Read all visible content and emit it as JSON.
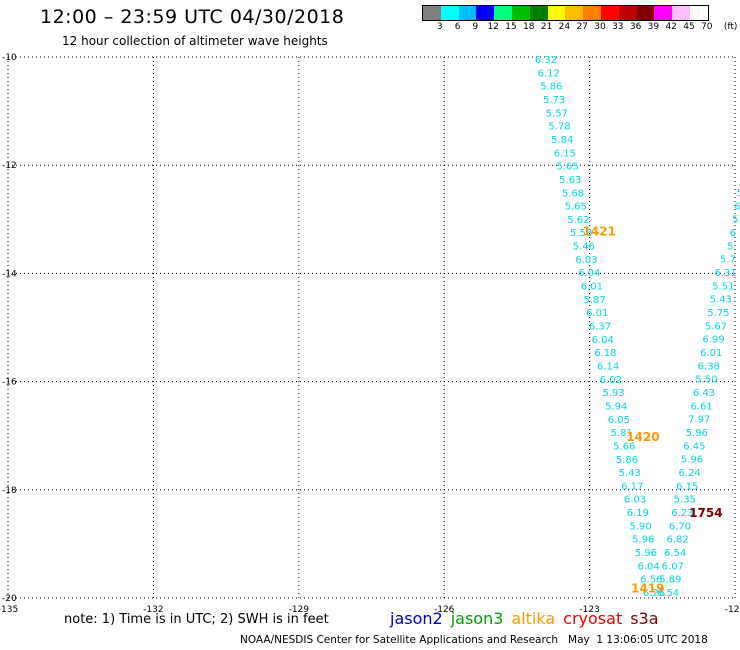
{
  "header": {
    "title": "12:00 – 23:59 UTC 04/30/2018",
    "subtitle": "12 hour collection of altimeter wave heights"
  },
  "colorbar": {
    "colors": [
      "#7f7f7f",
      "#00ffff",
      "#00bfff",
      "#0000ff",
      "#00ff7f",
      "#00bf00",
      "#008000",
      "#ffff00",
      "#ffbf00",
      "#ff7f00",
      "#ff0000",
      "#bf0000",
      "#7f0000",
      "#ff00ff",
      "#ffbfff",
      "#ffffff"
    ],
    "labels": [
      "3",
      "6",
      "9",
      "12",
      "15",
      "18",
      "21",
      "24",
      "27",
      "30",
      "33",
      "36",
      "39",
      "42",
      "45",
      "70"
    ],
    "unit": "(ft)"
  },
  "map": {
    "lon_range": [
      -135,
      -120
    ],
    "lat_range": [
      -20,
      -10
    ],
    "x_ticks": [
      "-135",
      "-132",
      "-129",
      "-126",
      "-123",
      "-120"
    ],
    "y_ticks": [
      "-10",
      "-12",
      "-14",
      "-16",
      "-18",
      "-20"
    ],
    "track1": {
      "color": "#00d8e8",
      "values": [
        "6.32",
        "6.12",
        "5.86",
        "5.73",
        "5.57",
        "5.78",
        "5.84",
        "6.15",
        "5.65",
        "5.63",
        "5.68",
        "5.65",
        "5.62",
        "5.58",
        "5.46",
        "6.03",
        "6.04",
        "6.01",
        "5.87",
        "6.01",
        "6.37",
        "6.04",
        "6.18",
        "6.14",
        "6.02",
        "5.93",
        "5.94",
        "6.05",
        "5.81",
        "5.66",
        "5.86",
        "5.43",
        "6.17",
        "6.03",
        "6.19",
        "5.90",
        "5.96",
        "5.96",
        "6.04",
        "6.56",
        "6.26"
      ]
    },
    "track2": {
      "color": "#00d8e8",
      "values": [
        "5",
        "6",
        "5",
        "6",
        "5",
        "5.7",
        "6.31",
        "5.51",
        "5.43",
        "5.75",
        "5.67",
        "6.99",
        "6.01",
        "6.38",
        "5.50",
        "6.43",
        "6.61",
        "7.97",
        "5.96",
        "6.45",
        "5.96",
        "6.24",
        "6.15",
        "5.35",
        "6.23",
        "6.70",
        "6.82",
        "6.54",
        "6.07",
        "5.89",
        "6.54"
      ]
    },
    "pass_labels": [
      {
        "text": "1421",
        "color": "#ff9900",
        "lon": -122.8,
        "lat": -13.3
      },
      {
        "text": "1420",
        "color": "#ff9900",
        "lon": -121.9,
        "lat": -17.1
      },
      {
        "text": "1419",
        "color": "#ff9900",
        "lon": -121.8,
        "lat": -19.9
      },
      {
        "text": "1754",
        "color": "#800000",
        "lon": -120.6,
        "lat": -18.5
      }
    ]
  },
  "note": "note: 1) Time is in UTC; 2) SWH is in feet",
  "legend": [
    {
      "name": "jason2",
      "color": "#0000cc"
    },
    {
      "name": "jason3",
      "color": "#00a000"
    },
    {
      "name": "altika",
      "color": "#ff9900"
    },
    {
      "name": "cryosat",
      "color": "#ee0000"
    },
    {
      "name": "s3a",
      "color": "#800000"
    }
  ],
  "footer": "NOAA/NESDIS Center for Satellite Applications and Research   May  1 13:06:05 UTC 2018"
}
